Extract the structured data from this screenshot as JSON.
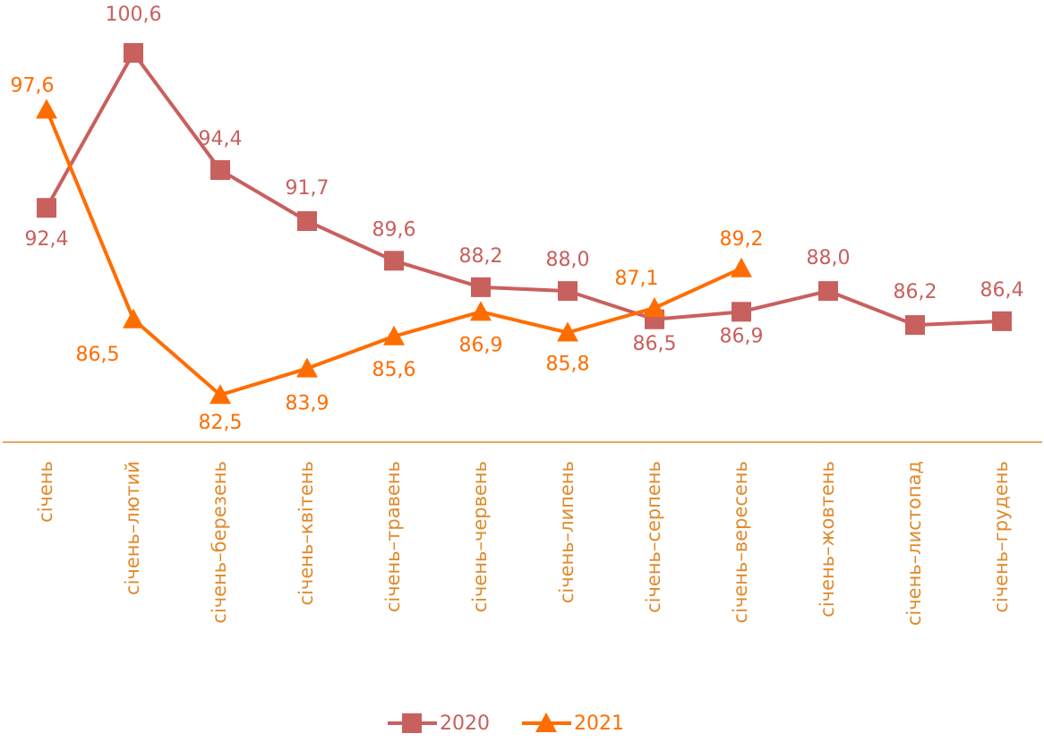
{
  "chart_data": {
    "type": "line",
    "categories": [
      "січень",
      "січень–лютий",
      "січень–березень",
      "січень–квітень",
      "січень–травень",
      "січень–червень",
      "січень–липень",
      "січень–серпень",
      "січень–вересень",
      "січень–жовтень",
      "січень–листопад",
      "січень–грудень"
    ],
    "series": [
      {
        "name": "2020",
        "color": "#c8605e",
        "marker": "square",
        "values": [
          92.4,
          100.6,
          94.4,
          91.7,
          89.6,
          88.2,
          88.0,
          86.5,
          86.9,
          88.0,
          86.2,
          86.4
        ],
        "value_labels": [
          "92,4",
          "100,6",
          "94,4",
          "91,7",
          "89,6",
          "88,2",
          "88,0",
          "86,5",
          "86,9",
          "88,0",
          "86,2",
          "86,4"
        ]
      },
      {
        "name": "2021",
        "color": "#ff6d00",
        "marker": "triangle",
        "values": [
          97.6,
          86.5,
          82.5,
          83.9,
          85.6,
          86.9,
          85.8,
          87.1,
          89.2,
          null,
          null,
          null
        ],
        "value_labels": [
          "97,6",
          "86,5",
          "82,5",
          "83,9",
          "85,6",
          "86,9",
          "85,8",
          "87,1",
          "89,2",
          null,
          null,
          null
        ]
      }
    ],
    "ylim": [
      80,
      103.4
    ],
    "legend": "bottom",
    "axis_color": "#e08a2c"
  }
}
